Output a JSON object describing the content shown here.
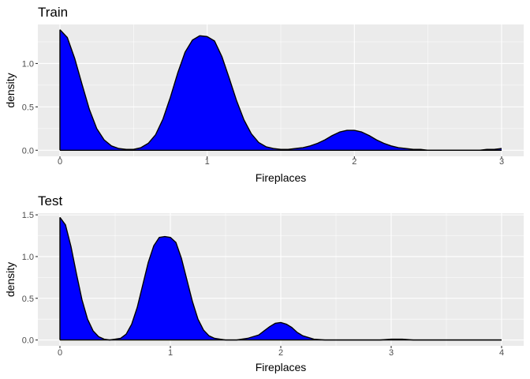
{
  "chart_data": [
    {
      "type": "area",
      "title": "Train",
      "xlabel": "Fireplaces",
      "ylabel": "density",
      "xlim": [
        -0.15,
        3.15
      ],
      "ylim": [
        -0.07,
        1.45
      ],
      "xticks": [
        0,
        1,
        2,
        3
      ],
      "yticks": [
        0.0,
        0.5,
        1.0
      ],
      "ytick_labels": [
        "0.0",
        "0.5",
        "1.0"
      ],
      "grid": true,
      "fill_color": "#0000ff",
      "line_color": "#000000",
      "panel_color": "#ebebeb",
      "x": [
        0.0,
        0.05,
        0.1,
        0.15,
        0.2,
        0.25,
        0.3,
        0.35,
        0.4,
        0.45,
        0.5,
        0.55,
        0.6,
        0.65,
        0.7,
        0.75,
        0.8,
        0.85,
        0.9,
        0.95,
        1.0,
        1.05,
        1.1,
        1.15,
        1.2,
        1.25,
        1.3,
        1.35,
        1.4,
        1.45,
        1.5,
        1.55,
        1.6,
        1.65,
        1.7,
        1.75,
        1.8,
        1.85,
        1.9,
        1.95,
        2.0,
        2.05,
        2.1,
        2.15,
        2.2,
        2.25,
        2.3,
        2.35,
        2.4,
        2.45,
        2.5,
        2.55,
        2.6,
        2.65,
        2.7,
        2.75,
        2.8,
        2.85,
        2.9,
        2.95,
        3.0
      ],
      "y": [
        1.39,
        1.3,
        1.06,
        0.76,
        0.47,
        0.25,
        0.12,
        0.05,
        0.02,
        0.01,
        0.01,
        0.03,
        0.08,
        0.18,
        0.36,
        0.61,
        0.89,
        1.13,
        1.27,
        1.32,
        1.31,
        1.26,
        1.08,
        0.83,
        0.57,
        0.35,
        0.19,
        0.09,
        0.04,
        0.02,
        0.01,
        0.01,
        0.02,
        0.03,
        0.05,
        0.08,
        0.12,
        0.17,
        0.21,
        0.23,
        0.23,
        0.21,
        0.17,
        0.12,
        0.08,
        0.05,
        0.03,
        0.02,
        0.01,
        0.01,
        0.0,
        0.0,
        0.0,
        0.0,
        0.0,
        0.0,
        0.0,
        0.0,
        0.01,
        0.01,
        0.02
      ]
    },
    {
      "type": "area",
      "title": "Test",
      "xlabel": "Fireplaces",
      "ylabel": "density",
      "xlim": [
        -0.2,
        4.2
      ],
      "ylim": [
        -0.07,
        1.52
      ],
      "xticks": [
        0,
        1,
        2,
        3,
        4
      ],
      "yticks": [
        0.0,
        0.5,
        1.0,
        1.5
      ],
      "ytick_labels": [
        "0.0",
        "0.5",
        "1.0",
        "1.5"
      ],
      "grid": true,
      "fill_color": "#0000ff",
      "line_color": "#000000",
      "panel_color": "#ebebeb",
      "x": [
        0.0,
        0.05,
        0.1,
        0.15,
        0.2,
        0.25,
        0.3,
        0.35,
        0.4,
        0.45,
        0.5,
        0.55,
        0.6,
        0.65,
        0.7,
        0.75,
        0.8,
        0.85,
        0.9,
        0.95,
        1.0,
        1.05,
        1.1,
        1.15,
        1.2,
        1.25,
        1.3,
        1.35,
        1.4,
        1.45,
        1.5,
        1.6,
        1.7,
        1.8,
        1.85,
        1.9,
        1.95,
        2.0,
        2.05,
        2.1,
        2.15,
        2.2,
        2.3,
        2.4,
        2.5,
        2.6,
        2.7,
        2.8,
        2.9,
        3.0,
        3.1,
        3.2,
        3.3,
        3.5,
        3.75,
        4.0
      ],
      "y": [
        1.47,
        1.38,
        1.12,
        0.79,
        0.48,
        0.25,
        0.11,
        0.04,
        0.01,
        0.0,
        0.01,
        0.02,
        0.07,
        0.19,
        0.39,
        0.66,
        0.93,
        1.13,
        1.23,
        1.24,
        1.23,
        1.17,
        0.98,
        0.72,
        0.46,
        0.25,
        0.12,
        0.05,
        0.02,
        0.01,
        0.0,
        0.0,
        0.02,
        0.06,
        0.11,
        0.16,
        0.2,
        0.21,
        0.19,
        0.15,
        0.09,
        0.05,
        0.01,
        0.0,
        0.0,
        0.0,
        0.0,
        0.0,
        0.0,
        0.01,
        0.01,
        0.0,
        0.0,
        0.0,
        0.0,
        0.0
      ]
    }
  ]
}
